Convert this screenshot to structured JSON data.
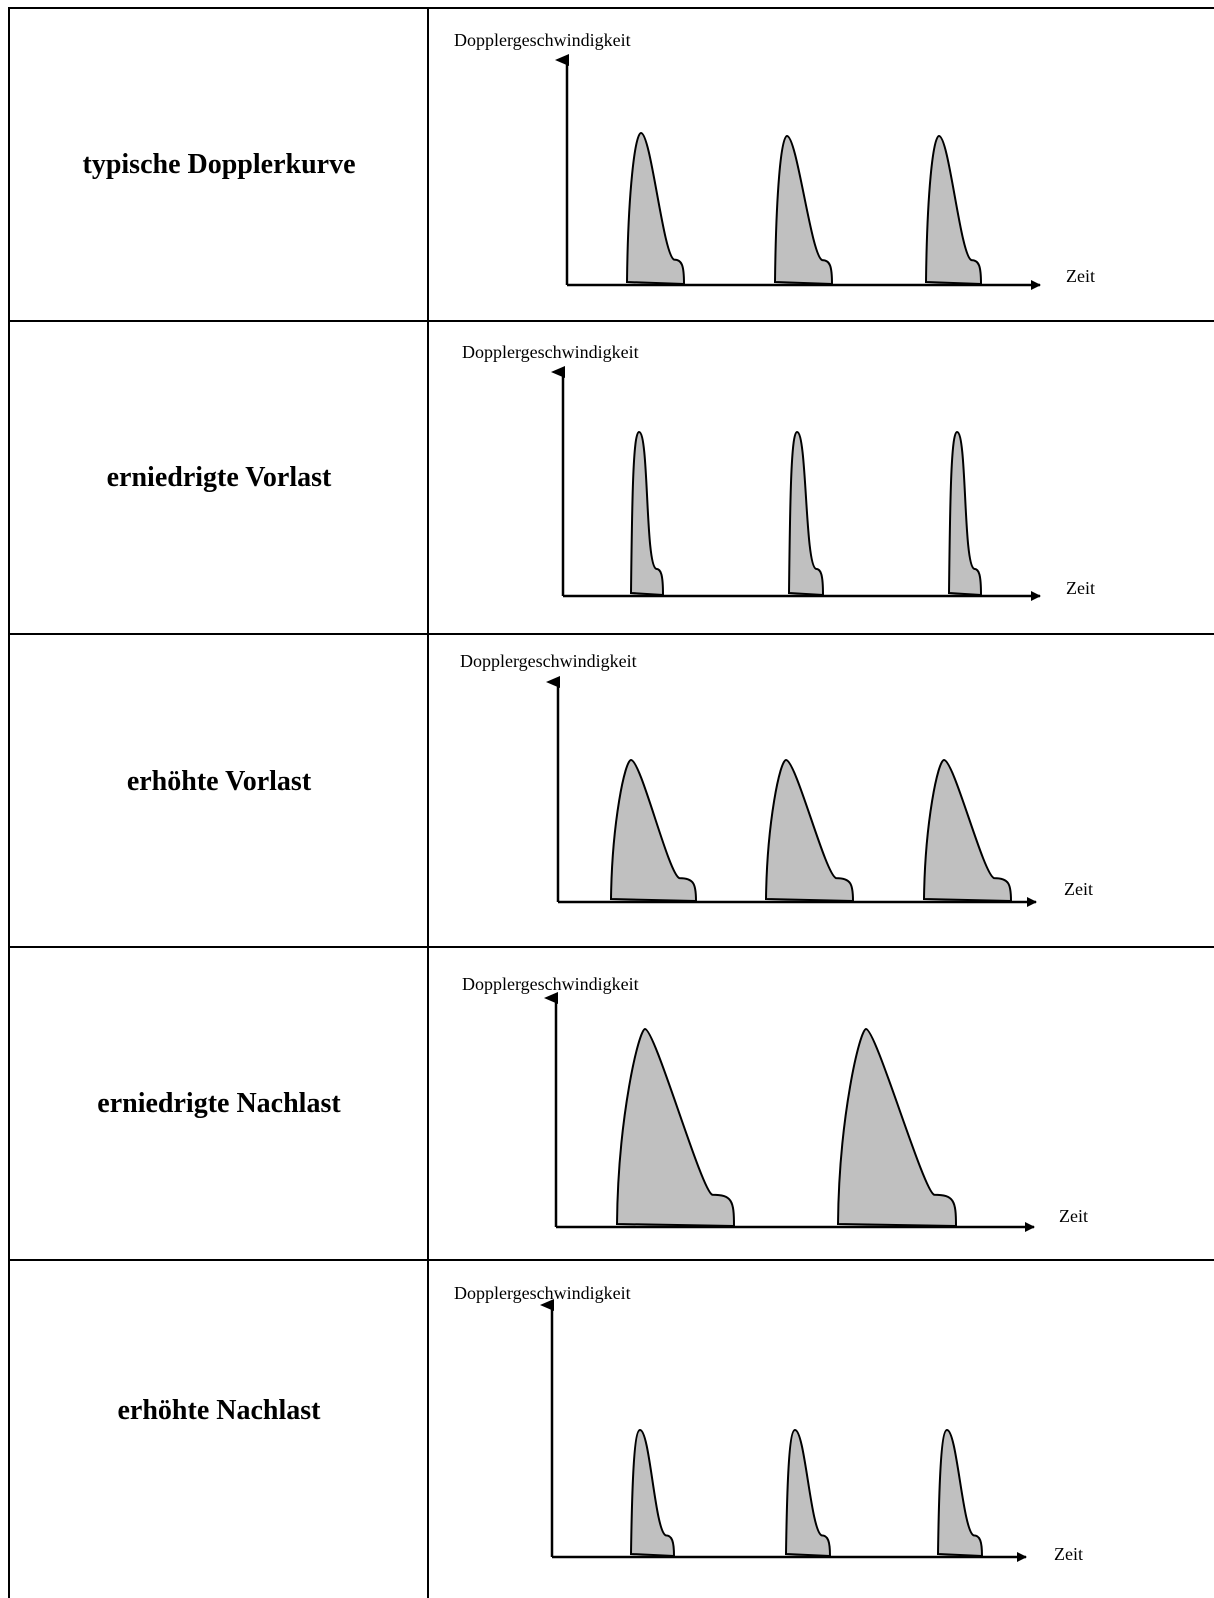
{
  "rows": [
    {
      "label": "typische Dopplerkurve",
      "y_axis_label": "Dopplergeschwindigkeit",
      "x_axis_label": "Zeit"
    },
    {
      "label": "erniedrigte Vorlast",
      "y_axis_label": "Dopplergeschwindigkeit",
      "x_axis_label": "Zeit"
    },
    {
      "label": "erhöhte Vorlast",
      "y_axis_label": "Dopplergeschwindigkeit",
      "x_axis_label": "Zeit"
    },
    {
      "label": "erniedrigte Nachlast",
      "y_axis_label": "Dopplergeschwindigkeit",
      "x_axis_label": "Zeit"
    },
    {
      "label": "erhöhte Nachlast",
      "y_axis_label": "Dopplergeschwindigkeit",
      "x_axis_label": "Zeit"
    }
  ],
  "colors": {
    "fill": "#c0c0c0",
    "stroke": "#000000",
    "background": "#ffffff"
  }
}
